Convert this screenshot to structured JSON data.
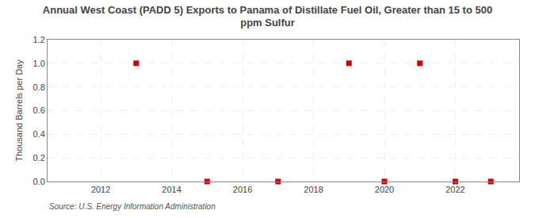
{
  "chart_data": {
    "type": "scatter",
    "title": "Annual West Coast (PADD 5) Exports to Panama of Distillate Fuel Oil, Greater than 15 to 500\nppm Sulfur",
    "ylabel": "Thousand Barrels per Day",
    "annotations": [
      "Source: U.S. Energy Information Administration"
    ],
    "x": [
      2013,
      2015,
      2017,
      2019,
      2020,
      2021,
      2022,
      2023
    ],
    "values": [
      1.0,
      0.0,
      0.0,
      1.0,
      0.0,
      1.0,
      0.0,
      0.0
    ],
    "color": "#cc0000",
    "marker": "square",
    "xlim": [
      2010.5,
      2023.8
    ],
    "ylim": [
      0.0,
      1.2
    ],
    "xticks": [
      2012,
      2014,
      2016,
      2018,
      2020,
      2022
    ],
    "yticks": [
      {
        "value": 0.0,
        "label": "0.0"
      },
      0.2,
      0.4,
      0.6,
      0.8,
      {
        "value": 1.0,
        "label": "1.0"
      },
      1.2
    ],
    "grid": true
  }
}
